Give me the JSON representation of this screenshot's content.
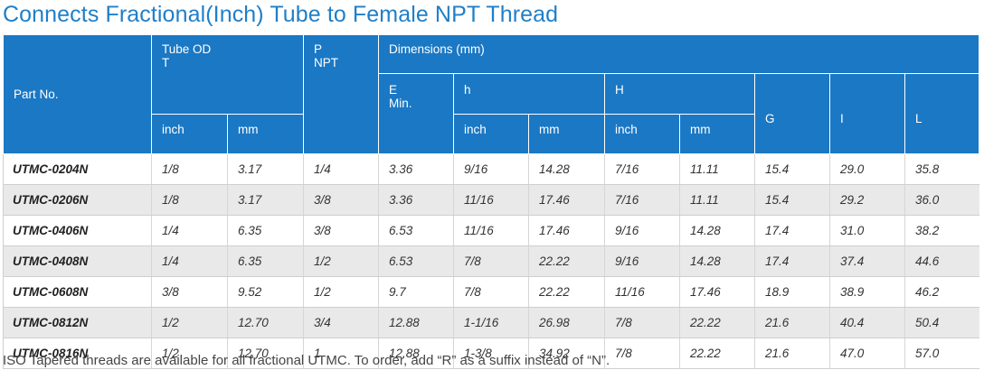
{
  "title": "Connects Fractional(Inch) Tube to Female NPT Thread",
  "headers": {
    "part_no": "Part No.",
    "tube_od": "Tube OD",
    "tube_t": "T",
    "p": "P",
    "npt": "NPT",
    "dimensions": "Dimensions (mm)",
    "e": "E",
    "e_min": "Min.",
    "h_small": "h",
    "h_big": "H",
    "g": "G",
    "i": "I",
    "l": "L",
    "inch": "inch",
    "mm": "mm"
  },
  "rows": [
    {
      "part": "UTMC-0204N",
      "t_inch": "1/8",
      "t_mm": "3.17",
      "npt": "1/4",
      "e": "3.36",
      "h_inch": "9/16",
      "h_mm": "14.28",
      "H_inch": "7/16",
      "H_mm": "11.11",
      "g": "15.4",
      "i": "29.0",
      "l": "35.8"
    },
    {
      "part": "UTMC-0206N",
      "t_inch": "1/8",
      "t_mm": "3.17",
      "npt": "3/8",
      "e": "3.36",
      "h_inch": "11/16",
      "h_mm": "17.46",
      "H_inch": "7/16",
      "H_mm": "11.11",
      "g": "15.4",
      "i": "29.2",
      "l": "36.0"
    },
    {
      "part": "UTMC-0406N",
      "t_inch": "1/4",
      "t_mm": "6.35",
      "npt": "3/8",
      "e": "6.53",
      "h_inch": "11/16",
      "h_mm": "17.46",
      "H_inch": "9/16",
      "H_mm": "14.28",
      "g": "17.4",
      "i": "31.0",
      "l": "38.2"
    },
    {
      "part": "UTMC-0408N",
      "t_inch": "1/4",
      "t_mm": "6.35",
      "npt": "1/2",
      "e": "6.53",
      "h_inch": "7/8",
      "h_mm": "22.22",
      "H_inch": "9/16",
      "H_mm": "14.28",
      "g": "17.4",
      "i": "37.4",
      "l": "44.6"
    },
    {
      "part": "UTMC-0608N",
      "t_inch": "3/8",
      "t_mm": "9.52",
      "npt": "1/2",
      "e": "9.7",
      "h_inch": "7/8",
      "h_mm": "22.22",
      "H_inch": "11/16",
      "H_mm": "17.46",
      "g": "18.9",
      "i": "38.9",
      "l": "46.2"
    },
    {
      "part": "UTMC-0812N",
      "t_inch": "1/2",
      "t_mm": "12.70",
      "npt": "3/4",
      "e": "12.88",
      "h_inch": "1-1/16",
      "h_mm": "26.98",
      "H_inch": "7/8",
      "H_mm": "22.22",
      "g": "21.6",
      "i": "40.4",
      "l": "50.4"
    },
    {
      "part": "UTMC-0816N",
      "t_inch": "1/2",
      "t_mm": "12.70",
      "npt": "1",
      "e": "12.88",
      "h_inch": "1-3/8",
      "h_mm": "34.92",
      "H_inch": "7/8",
      "H_mm": "22.22",
      "g": "21.6",
      "i": "47.0",
      "l": "57.0"
    }
  ],
  "note": "ISO Tapered threads are available for all fractional UTMC.  To order, add “R” as a suffix instead of “N”.",
  "colors": {
    "title": "#1f7fc8",
    "header_bg": "#1b78c4",
    "row_alt": "#e9e9e9"
  }
}
